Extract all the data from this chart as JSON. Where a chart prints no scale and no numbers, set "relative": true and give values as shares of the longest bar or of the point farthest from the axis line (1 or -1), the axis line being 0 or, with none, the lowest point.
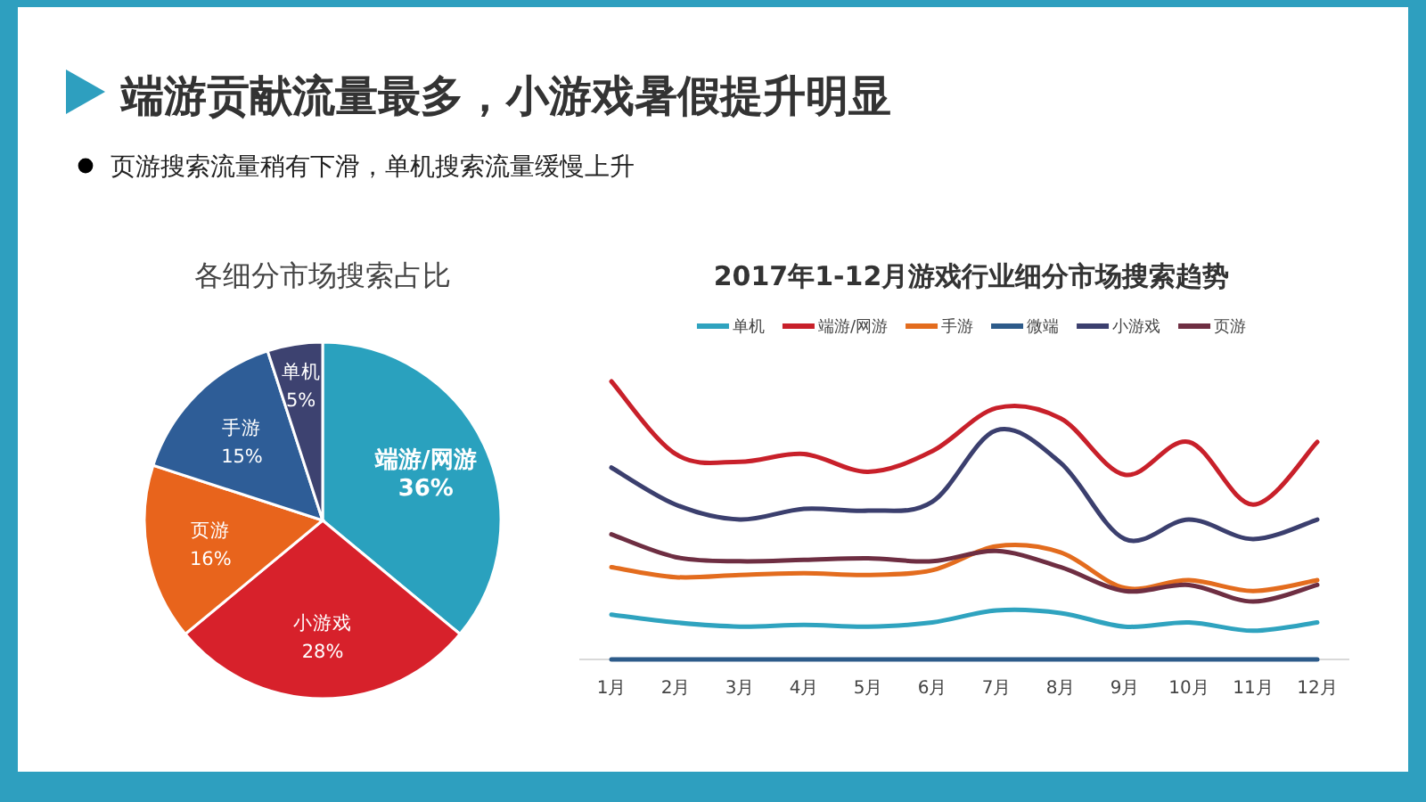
{
  "chart_data": [
    {
      "type": "other",
      "title": "端游贡献流量最多，小游戏暑假提升明显",
      "annotations": [
        "页游搜索流量稍有下滑，单机搜索流量缓慢上升"
      ]
    },
    {
      "type": "pie",
      "title": "各细分市场搜索占比",
      "categories": [
        "端游/网游",
        "小游戏",
        "页游",
        "手游",
        "单机"
      ],
      "values": [
        36,
        28,
        16,
        15,
        5
      ],
      "value_labels": [
        "36%",
        "28%",
        "16%",
        "15%",
        "5%"
      ],
      "colors": [
        "#2aa1be",
        "#d7212b",
        "#e8641c",
        "#2e5d97",
        "#3d4270"
      ]
    },
    {
      "type": "line",
      "title": "2017年1-12月游戏行业细分市场搜索趋势",
      "relative": true,
      "legend": "top",
      "categories": [
        "1月",
        "2月",
        "3月",
        "4月",
        "5月",
        "6月",
        "7月",
        "8月",
        "9月",
        "10月",
        "11月",
        "12月"
      ],
      "series": [
        {
          "name": "单机",
          "color": "#2fa3bf",
          "values": [
            0.161,
            0.133,
            0.118,
            0.124,
            0.118,
            0.133,
            0.176,
            0.167,
            0.118,
            0.133,
            0.103,
            0.133
          ]
        },
        {
          "name": "端游/网游",
          "color": "#c8202a",
          "values": [
            1.0,
            0.739,
            0.711,
            0.739,
            0.675,
            0.749,
            0.904,
            0.867,
            0.664,
            0.782,
            0.557,
            0.782
          ]
        },
        {
          "name": "手游",
          "color": "#e36c1e",
          "values": [
            0.332,
            0.296,
            0.304,
            0.31,
            0.304,
            0.321,
            0.407,
            0.385,
            0.257,
            0.285,
            0.246,
            0.285
          ]
        },
        {
          "name": "微端",
          "color": "#2d5b8a",
          "values": [
            0,
            0,
            0,
            0,
            0,
            0,
            0,
            0,
            0,
            0,
            0,
            0
          ]
        },
        {
          "name": "小游戏",
          "color": "#3b3f6e",
          "values": [
            0.69,
            0.557,
            0.503,
            0.542,
            0.535,
            0.567,
            0.824,
            0.707,
            0.433,
            0.503,
            0.433,
            0.503
          ]
        },
        {
          "name": "页游",
          "color": "#6e2e42",
          "values": [
            0.45,
            0.368,
            0.353,
            0.358,
            0.364,
            0.353,
            0.39,
            0.332,
            0.246,
            0.268,
            0.208,
            0.268
          ]
        }
      ]
    }
  ]
}
